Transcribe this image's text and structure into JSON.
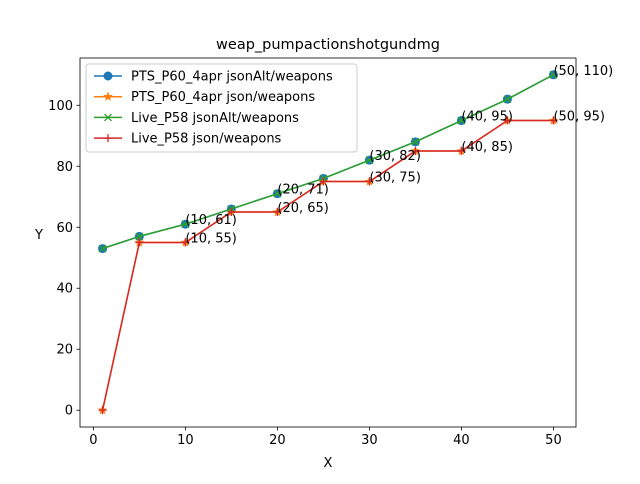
{
  "chart_data": {
    "type": "line",
    "title": "weap_pumpactionshotgundmg",
    "xlabel": "X",
    "ylabel": "Y",
    "xlim": [
      -1.45,
      52.45
    ],
    "ylim": [
      -5.5,
      115.5
    ],
    "xticks": [
      0,
      10,
      20,
      30,
      40,
      50
    ],
    "yticks": [
      0,
      20,
      40,
      60,
      80,
      100
    ],
    "grid": false,
    "legend_position": "upper-left",
    "series": [
      {
        "name": "PTS_P60_4apr jsonAlt/weapons",
        "color": "#1f77b4",
        "marker": "circle",
        "x": [
          1,
          5,
          10,
          15,
          20,
          25,
          30,
          35,
          40,
          45,
          50
        ],
        "y": [
          53,
          57,
          61,
          66,
          71,
          76,
          82,
          88,
          95,
          102,
          110
        ]
      },
      {
        "name": "PTS_P60_4apr json/weapons",
        "color": "#ff7f0e",
        "marker": "star",
        "x": [
          1,
          5,
          10,
          15,
          20,
          25,
          30,
          35,
          40,
          45,
          50
        ],
        "y": [
          0,
          55,
          55,
          65,
          65,
          75,
          75,
          85,
          85,
          95,
          95
        ]
      },
      {
        "name": "Live_P58 jsonAlt/weapons",
        "color": "#2ca02c",
        "marker": "x",
        "x": [
          1,
          5,
          10,
          15,
          20,
          25,
          30,
          35,
          40,
          45,
          50
        ],
        "y": [
          53,
          57,
          61,
          66,
          71,
          76,
          82,
          88,
          95,
          102,
          110
        ]
      },
      {
        "name": "Live_P58 json/weapons",
        "color": "#d62728",
        "marker": "plus",
        "x": [
          1,
          5,
          10,
          15,
          20,
          25,
          30,
          35,
          40,
          45,
          50
        ],
        "y": [
          0,
          55,
          55,
          65,
          65,
          75,
          75,
          85,
          85,
          95,
          95
        ]
      }
    ],
    "annotations": [
      {
        "text": "(10, 61)",
        "x": 10,
        "y": 61
      },
      {
        "text": "(10, 55)",
        "x": 10,
        "y": 55
      },
      {
        "text": "(20, 71)",
        "x": 20,
        "y": 71
      },
      {
        "text": "(20, 65)",
        "x": 20,
        "y": 65
      },
      {
        "text": "(30, 82)",
        "x": 30,
        "y": 82
      },
      {
        "text": "(30, 75)",
        "x": 30,
        "y": 75
      },
      {
        "text": "(40, 95)",
        "x": 40,
        "y": 95
      },
      {
        "text": "(40, 85)",
        "x": 40,
        "y": 85
      },
      {
        "text": "(50, 110)",
        "x": 50,
        "y": 110
      },
      {
        "text": "(50, 95)",
        "x": 50,
        "y": 95
      }
    ]
  }
}
